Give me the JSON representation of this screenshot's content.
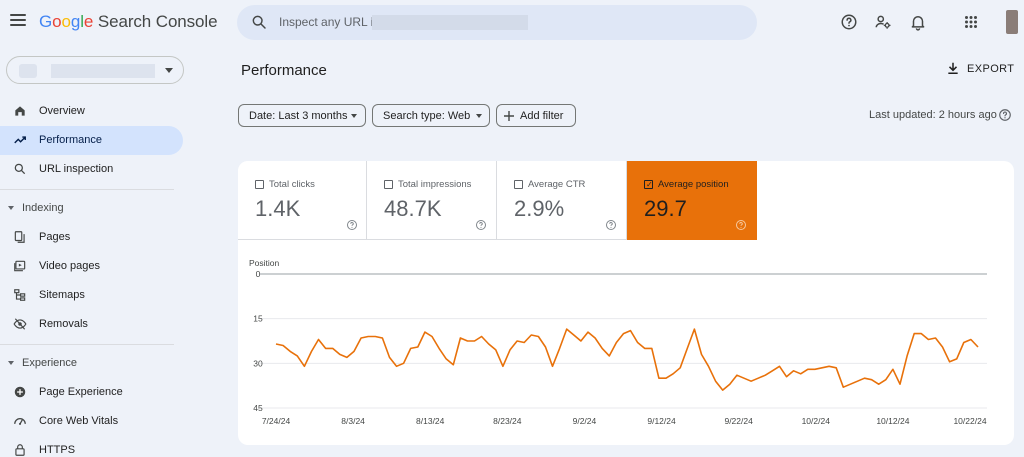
{
  "header": {
    "brand_letters": [
      "G",
      "o",
      "o",
      "g",
      "l",
      "e"
    ],
    "brand_rest": "Search Console",
    "search_placeholder": "Inspect any URL in"
  },
  "icons": {
    "menu": "hamburger-icon",
    "search": "search-icon",
    "help": "help-icon",
    "users": "manage-users-icon",
    "notifications": "bell-icon",
    "apps": "apps-grid-icon"
  },
  "sidebar": {
    "nav": [
      {
        "label": "Overview",
        "icon": "home-icon",
        "active": false
      },
      {
        "label": "Performance",
        "icon": "trending-icon",
        "active": true
      },
      {
        "label": "URL inspection",
        "icon": "search-icon",
        "active": false
      }
    ],
    "sections": [
      {
        "title": "Indexing",
        "items": [
          {
            "label": "Pages",
            "icon": "pages-icon"
          },
          {
            "label": "Video pages",
            "icon": "video-icon"
          },
          {
            "label": "Sitemaps",
            "icon": "sitemap-icon"
          },
          {
            "label": "Removals",
            "icon": "removals-icon"
          }
        ]
      },
      {
        "title": "Experience",
        "items": [
          {
            "label": "Page Experience",
            "icon": "page-experience-icon"
          },
          {
            "label": "Core Web Vitals",
            "icon": "speed-icon"
          },
          {
            "label": "HTTPS",
            "icon": "lock-icon"
          }
        ]
      }
    ]
  },
  "main": {
    "title": "Performance",
    "export_label": "EXPORT",
    "filters": {
      "date": "Date: Last 3 months",
      "search_type": "Search type: Web",
      "add_filter": "Add filter"
    },
    "last_updated": "Last updated: 2 hours ago"
  },
  "metrics": [
    {
      "label": "Total clicks",
      "value": "1.4K",
      "selected": false
    },
    {
      "label": "Total impressions",
      "value": "48.7K",
      "selected": false
    },
    {
      "label": "Average CTR",
      "value": "2.9%",
      "selected": false
    },
    {
      "label": "Average position",
      "value": "29.7",
      "selected": true
    }
  ],
  "colors": {
    "accent": "#e8710a",
    "active_nav": "#d3e3fd",
    "background": "#eef2f9"
  },
  "chart_data": {
    "type": "line",
    "ylabel": "Position",
    "y_ticks": [
      "0",
      "15",
      "30",
      "45"
    ],
    "ylim": [
      0,
      45
    ],
    "y_inverted": true,
    "x_tick_labels": [
      "7/24/24",
      "8/3/24",
      "8/13/24",
      "8/23/24",
      "9/2/24",
      "9/12/24",
      "9/22/24",
      "10/2/24",
      "10/12/24",
      "10/22/24"
    ],
    "series": [
      {
        "values": [
          23.5,
          24,
          26,
          27.5,
          31,
          26,
          22,
          25,
          25,
          27,
          28,
          26,
          21.5,
          21,
          21,
          21.5,
          28,
          31,
          30,
          25,
          24.5,
          19.5,
          21,
          25,
          28.5,
          30.5,
          21.5,
          22.5,
          22.5,
          21,
          23.5,
          25.5,
          31,
          25.5,
          22.5,
          23,
          20.5,
          21,
          24.5,
          31,
          25,
          18.5,
          20.5,
          22.5,
          19.5,
          21.5,
          25,
          27.5,
          23,
          20,
          19,
          23,
          25,
          25,
          35,
          35,
          33.5,
          31.5,
          25,
          18.5,
          27,
          31,
          36,
          39,
          37,
          34,
          35,
          36,
          35,
          34,
          32.5,
          31,
          34.5,
          32.5,
          33.5,
          32,
          32,
          31.5,
          31,
          31.5,
          38,
          37,
          36,
          35,
          35.5,
          37,
          35.5,
          32,
          37,
          27.5,
          20,
          20,
          22,
          21.5,
          24.5,
          29.5,
          28.5,
          23,
          22,
          24.5
        ]
      }
    ]
  }
}
